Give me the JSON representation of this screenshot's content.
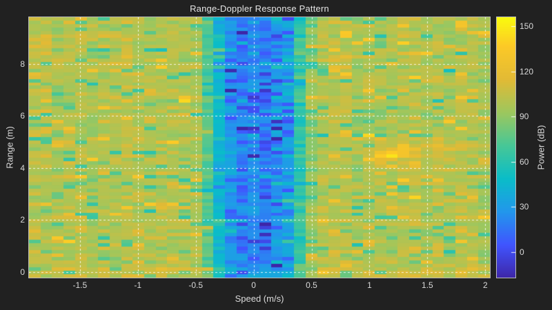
{
  "figure": {
    "background": "#212121",
    "text_color": "#d9d9d9",
    "axis_box_color": "#b9b9b9",
    "grid_line_color": "rgba(255,255,255,0.85)",
    "grid_style": "dashed"
  },
  "title": "Range-Doppler Response Pattern",
  "axes": {
    "xlabel": "Speed (m/s)",
    "ylabel": "Range (m)",
    "x_ticks": [
      -1.5,
      -1,
      -0.5,
      0,
      0.5,
      1,
      1.5,
      2
    ],
    "x_tick_labels": [
      "-1.5",
      "-1",
      "-0.5",
      "0",
      "0.5",
      "1",
      "1.5",
      "2"
    ],
    "y_ticks": [
      0,
      2,
      4,
      6,
      8
    ],
    "y_tick_labels": [
      "0",
      "2",
      "4",
      "6",
      "8"
    ],
    "x_range": [
      -1.94,
      2.04
    ],
    "y_range": [
      -0.21,
      9.79
    ]
  },
  "colorbar": {
    "label": "Power (dB)",
    "ticks": [
      0,
      30,
      60,
      90,
      120,
      150
    ],
    "tick_labels": [
      "0",
      "30",
      "60",
      "90",
      "120",
      "150"
    ],
    "range": [
      -17,
      156
    ],
    "colormap": "parula",
    "stops": [
      {
        "t": 0.0,
        "c": "#3e26a8"
      },
      {
        "t": 0.127,
        "c": "#4055ff"
      },
      {
        "t": 0.254,
        "c": "#2297ec"
      },
      {
        "t": 0.381,
        "c": "#0abdc8"
      },
      {
        "t": 0.508,
        "c": "#47c797"
      },
      {
        "t": 0.635,
        "c": "#9dc75e"
      },
      {
        "t": 0.762,
        "c": "#e2ba35"
      },
      {
        "t": 0.889,
        "c": "#fcc927"
      },
      {
        "t": 1.0,
        "c": "#f9fb0e"
      }
    ]
  },
  "chart_data": {
    "type": "heatmap",
    "title": "Range-Doppler Response Pattern",
    "xlabel": "Speed (m/s)",
    "ylabel": "Range (m)",
    "colorbar_label": "Power (dB)",
    "x_range_mps": [
      -1.94,
      2.04
    ],
    "y_range_m": [
      -0.21,
      9.79
    ],
    "color_range_db": [
      -17,
      156
    ],
    "x_ticks": [
      -1.5,
      -1,
      -0.5,
      0,
      0.5,
      1,
      1.5,
      2
    ],
    "y_ticks": [
      0,
      2,
      4,
      6,
      8
    ],
    "colorbar_ticks": [
      0,
      30,
      60,
      90,
      120,
      150
    ],
    "grid_cells": {
      "cols": 40,
      "rows": 76
    },
    "description": "Noisy range-doppler power map: ~100 dB speckle background, deep low-power vertical notch (down to ~0-40 dB) around 0 m/s, strong target return peaking ~150 dB near speed 1.2 m/s at range 4.5 m with a weaker trailing lobe toward 1.6 m/s, slightly elevated return along the range-0 row.",
    "background_power_db": 100,
    "noise_std_db": 7,
    "outliers": {
      "hot_prob": 0.05,
      "hot_db": [
        14,
        30
      ],
      "cold_prob": 0.08,
      "cold_db": [
        -32,
        -16
      ]
    },
    "center_notch": {
      "speed_center_mps": 0.02,
      "half_width_mps": 0.4,
      "depth_db": 78,
      "extra_dip_prob": 0.15,
      "extra_dip_db": [
        -28,
        -8
      ],
      "extra_dip_speed_limit": 0.28
    },
    "target": {
      "speed_mps": 1.17,
      "range_m": 4.52,
      "peak_gain_db": 52,
      "speed_sigma": 0.17,
      "range_sigma": 0.17,
      "tilt": 0.5
    },
    "secondary_lobe": {
      "speed_mps": 1.62,
      "range_m": 4.75,
      "gain_db": 14,
      "speed_sigma": 0.25,
      "range_sigma": 0.3
    },
    "range_zero_boost_db": 10,
    "seed": 11
  }
}
